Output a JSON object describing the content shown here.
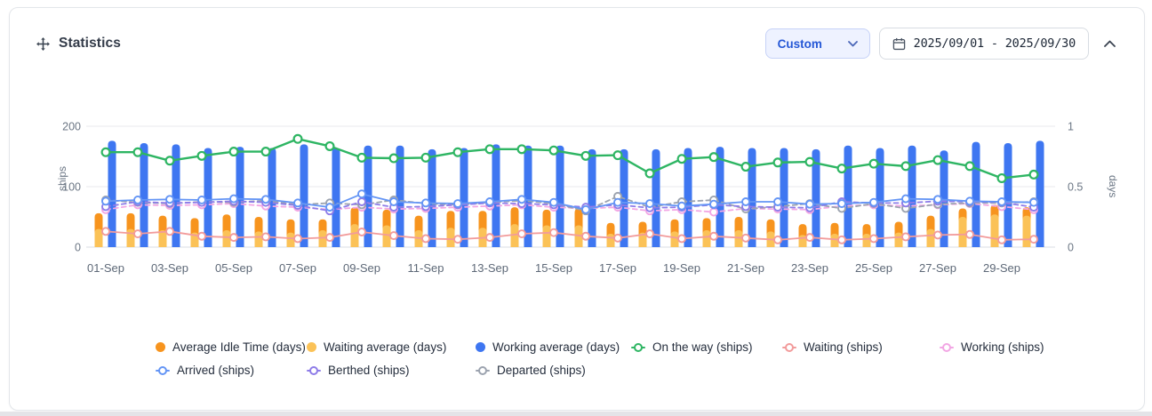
{
  "header": {
    "title": "Statistics",
    "range_select_value": "Custom",
    "date_range": "2025/09/01 - 2025/09/30"
  },
  "colors": {
    "accent_blue": "#2457d6",
    "select_bg": "#eef2ff",
    "card_border": "#e3e6ea",
    "axis_text": "#6b7684",
    "grid_line": "#e8eaee"
  },
  "chart_data": {
    "type": "bar+line combo (dual axis)",
    "title": "",
    "categories": [
      "01-Sep",
      "02-Sep",
      "03-Sep",
      "04-Sep",
      "05-Sep",
      "06-Sep",
      "07-Sep",
      "08-Sep",
      "09-Sep",
      "10-Sep",
      "11-Sep",
      "12-Sep",
      "13-Sep",
      "14-Sep",
      "15-Sep",
      "16-Sep",
      "17-Sep",
      "18-Sep",
      "19-Sep",
      "20-Sep",
      "21-Sep",
      "22-Sep",
      "23-Sep",
      "24-Sep",
      "25-Sep",
      "26-Sep",
      "27-Sep",
      "28-Sep",
      "29-Sep",
      "30-Sep"
    ],
    "x_tick_labels": [
      "01-Sep",
      "03-Sep",
      "05-Sep",
      "07-Sep",
      "09-Sep",
      "11-Sep",
      "13-Sep",
      "15-Sep",
      "17-Sep",
      "19-Sep",
      "21-Sep",
      "23-Sep",
      "25-Sep",
      "27-Sep",
      "29-Sep"
    ],
    "left_axis": {
      "label": "ships",
      "min": 0,
      "max": 200,
      "ticks": [
        0,
        100,
        200
      ]
    },
    "right_axis": {
      "label": "days",
      "min": 0,
      "max": 1,
      "ticks": [
        0,
        0.5,
        1
      ]
    },
    "grid": true,
    "legend_position": "bottom",
    "bar_series": [
      {
        "name": "Average Idle Time (days)",
        "axis": "right",
        "color": "#F7941E",
        "values": [
          0.28,
          0.28,
          0.26,
          0.24,
          0.27,
          0.25,
          0.23,
          0.23,
          0.33,
          0.31,
          0.26,
          0.3,
          0.3,
          0.33,
          0.31,
          0.32,
          0.2,
          0.21,
          0.23,
          0.24,
          0.25,
          0.23,
          0.19,
          0.2,
          0.19,
          0.21,
          0.26,
          0.32,
          0.35,
          0.33
        ]
      },
      {
        "name": "Waiting average (days)",
        "axis": "right",
        "color": "#FBC257",
        "values": [
          0.15,
          0.15,
          0.14,
          0.12,
          0.14,
          0.13,
          0.12,
          0.14,
          0.19,
          0.18,
          0.14,
          0.16,
          0.16,
          0.19,
          0.18,
          0.18,
          0.11,
          0.12,
          0.13,
          0.14,
          0.14,
          0.13,
          0.1,
          0.11,
          0.11,
          0.12,
          0.15,
          0.25,
          0.27,
          0.26
        ]
      },
      {
        "name": "Working average (days)",
        "axis": "right",
        "color": "#3E76F1",
        "values": [
          0.88,
          0.86,
          0.85,
          0.82,
          0.83,
          0.82,
          0.85,
          0.82,
          0.84,
          0.84,
          0.81,
          0.82,
          0.85,
          0.84,
          0.84,
          0.81,
          0.81,
          0.81,
          0.82,
          0.83,
          0.82,
          0.82,
          0.81,
          0.84,
          0.82,
          0.84,
          0.8,
          0.87,
          0.86,
          0.88
        ]
      }
    ],
    "line_series": [
      {
        "name": "On the way (ships)",
        "axis": "left",
        "color": "#2EB563",
        "dash": false,
        "values": [
          157,
          157,
          143,
          151,
          158,
          158,
          179,
          167,
          148,
          147,
          148,
          157,
          162,
          162,
          160,
          151,
          152,
          122,
          146,
          149,
          133,
          140,
          141,
          130,
          138,
          134,
          144,
          134,
          114,
          120
        ]
      },
      {
        "name": "Waiting (ships)",
        "axis": "left",
        "color": "#F29B9B",
        "dash": false,
        "values": [
          26,
          22,
          26,
          18,
          16,
          17,
          14,
          16,
          25,
          19,
          14,
          13,
          16,
          22,
          24,
          18,
          15,
          22,
          14,
          18,
          15,
          12,
          16,
          12,
          14,
          17,
          20,
          21,
          12,
          13
        ]
      },
      {
        "name": "Working (ships)",
        "axis": "left",
        "color": "#F2A6E4",
        "dash": true,
        "values": [
          62,
          70,
          69,
          70,
          72,
          68,
          66,
          62,
          66,
          63,
          64,
          66,
          68,
          70,
          66,
          64,
          66,
          60,
          62,
          58,
          64,
          63,
          62,
          68,
          70,
          68,
          70,
          72,
          67,
          62
        ]
      },
      {
        "name": "Arrived (ships)",
        "axis": "left",
        "color": "#6495F5",
        "dash": false,
        "values": [
          76,
          78,
          79,
          78,
          80,
          79,
          73,
          66,
          88,
          75,
          73,
          72,
          75,
          79,
          74,
          62,
          74,
          72,
          68,
          71,
          75,
          75,
          71,
          72,
          74,
          80,
          79,
          76,
          75,
          74
        ]
      },
      {
        "name": "Berthed (ships)",
        "axis": "left",
        "color": "#8E7CE8",
        "dash": true,
        "values": [
          67,
          75,
          73,
          74,
          76,
          74,
          69,
          60,
          75,
          66,
          67,
          70,
          73,
          72,
          70,
          66,
          70,
          65,
          66,
          70,
          67,
          66,
          65,
          75,
          73,
          73,
          76,
          75,
          74,
          66
        ]
      },
      {
        "name": "Departed (ships)",
        "axis": "left",
        "color": "#9CA3AF",
        "dash": true,
        "values": [
          78,
          74,
          72,
          75,
          74,
          77,
          70,
          73,
          70,
          78,
          72,
          70,
          74,
          77,
          72,
          60,
          84,
          66,
          75,
          78,
          63,
          67,
          72,
          64,
          72,
          64,
          71,
          73,
          73,
          75
        ]
      }
    ]
  },
  "legend": {
    "items": [
      {
        "label": "Average Idle Time (days)",
        "color": "#F7941E",
        "marker": "filled-dot"
      },
      {
        "label": "Waiting average (days)",
        "color": "#FBC257",
        "marker": "filled-dot"
      },
      {
        "label": "Working average (days)",
        "color": "#3E76F1",
        "marker": "filled-dot"
      },
      {
        "label": "On the way (ships)",
        "color": "#2EB563",
        "marker": "ring-line"
      },
      {
        "label": "Waiting (ships)",
        "color": "#F29B9B",
        "marker": "ring-line"
      },
      {
        "label": "Working (ships)",
        "color": "#F2A6E4",
        "marker": "ring-line"
      },
      {
        "label": "Arrived (ships)",
        "color": "#6495F5",
        "marker": "ring-line"
      },
      {
        "label": "Berthed (ships)",
        "color": "#8E7CE8",
        "marker": "ring-line"
      },
      {
        "label": "Departed (ships)",
        "color": "#9CA3AF",
        "marker": "ring-line"
      }
    ]
  }
}
